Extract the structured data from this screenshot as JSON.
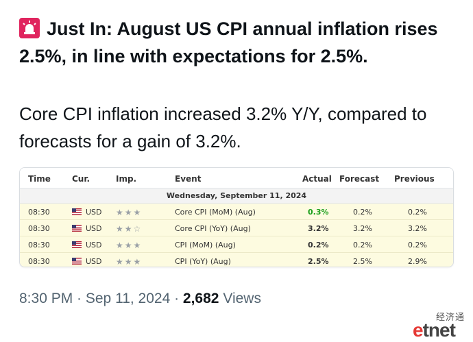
{
  "post": {
    "headline": "Just In: August US CPI annual inflation rises 2.5%, in line with expectations for 2.5%.",
    "body": "Core CPI inflation increased 3.2% Y/Y, compared to forecasts for a gain of 3.2%.",
    "time": "8:30 PM · Sep 11, 2024 · ",
    "views_count": "2,682",
    "views_label": " Views",
    "siren_icon": "police-light-icon"
  },
  "table": {
    "headers": {
      "time": "Time",
      "cur": "Cur.",
      "imp": "Imp.",
      "event": "Event",
      "actual": "Actual",
      "forecast": "Forecast",
      "previous": "Previous"
    },
    "date": "Wednesday, September 11, 2024",
    "rows": [
      {
        "time": "08:30",
        "cur": "USD",
        "stars": "★★★",
        "event": "Core CPI (MoM) (Aug)",
        "actual": "0.3%",
        "forecast": "0.2%",
        "previous": "0.2%"
      },
      {
        "time": "08:30",
        "cur": "USD",
        "stars": "★★☆",
        "event": "Core CPI (YoY) (Aug)",
        "actual": "3.2%",
        "forecast": "3.2%",
        "previous": "3.2%"
      },
      {
        "time": "08:30",
        "cur": "USD",
        "stars": "★★★",
        "event": "CPI (MoM) (Aug)",
        "actual": "0.2%",
        "forecast": "0.2%",
        "previous": "0.2%"
      },
      {
        "time": "08:30",
        "cur": "USD",
        "stars": "★★★",
        "event": "CPI (YoY) (Aug)",
        "actual": "2.5%",
        "forecast": "2.5%",
        "previous": "2.9%"
      }
    ],
    "colors": {
      "row_bg": "#fdfbe0",
      "actual_up": "#1a9e1a"
    }
  },
  "watermark": {
    "cn": "经济通",
    "logo_e": "e",
    "logo_rest": "tnet"
  }
}
